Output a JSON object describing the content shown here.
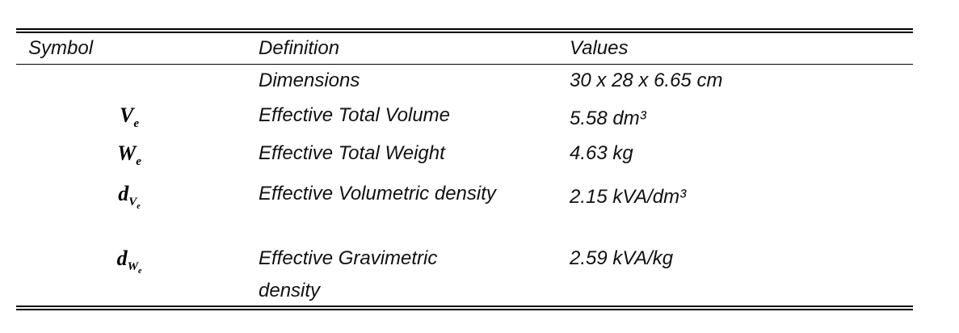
{
  "table": {
    "header": [
      "Symbol",
      "Definition",
      "Values"
    ],
    "rows": [
      {
        "definition": "Dimensions",
        "value": "30 x 28 x 6.65 cm"
      },
      {
        "symbol": {
          "base": "V",
          "sub": "e"
        },
        "definition": "Effective Total Volume",
        "value": "5.58 dm³"
      },
      {
        "symbol": {
          "base": "W",
          "sub": "e"
        },
        "definition": "Effective Total Weight",
        "value": "4.63 kg"
      },
      {
        "symbol": {
          "base": "d",
          "sub": "V",
          "subsub": "e"
        },
        "definition": "Effective Volumetric density",
        "value": "2.15 kVA/dm³"
      },
      {
        "symbol": {
          "base": "d",
          "sub": "W",
          "subsub": "e"
        },
        "definition": "Effective Gravimetric density",
        "value": "2.59 kVA/kg"
      }
    ]
  }
}
